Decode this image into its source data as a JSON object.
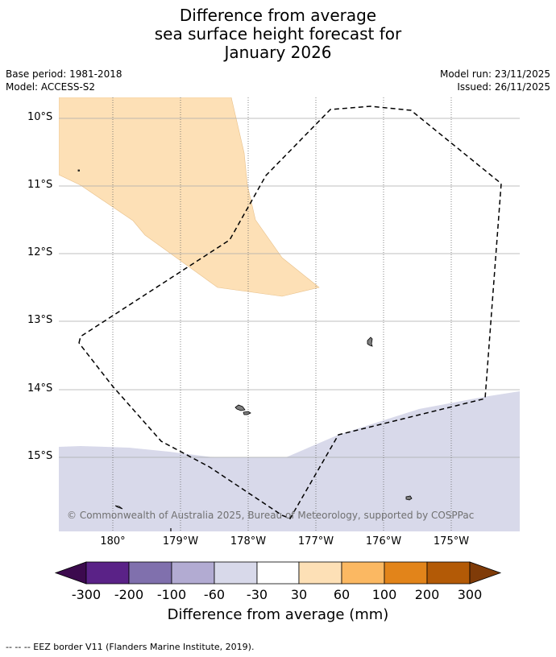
{
  "title": {
    "line1": "Difference from average",
    "line2": "sea surface height forecast for",
    "line3": "January 2026"
  },
  "meta": {
    "base_period": "Base period: 1981-2018",
    "model": "Model: ACCESS-S2",
    "model_run": "Model run: 23/11/2025",
    "issued": "Issued: 26/11/2025"
  },
  "map": {
    "y_ticks": [
      "10°S",
      "11°S",
      "12°S",
      "13°S",
      "14°S",
      "15°S"
    ],
    "x_ticks": [
      "180°",
      "179°W",
      "178°W",
      "177°W",
      "176°W",
      "175°W"
    ],
    "copyright": "© Commonwealth of Australia 2025, Bureau of Meteorology, supported by COSPPac",
    "colors": {
      "light_orange": "#fde0b6",
      "light_purple": "#d8d9ea",
      "land": "#7f7f7f",
      "border": "#000000"
    }
  },
  "colorbar": {
    "labels": [
      "-300",
      "-200",
      "-100",
      "-60",
      "-30",
      "30",
      "60",
      "100",
      "200",
      "300"
    ],
    "colors": [
      "#3c0a4e",
      "#5a2287",
      "#8070ad",
      "#b2abd2",
      "#d8d9ea",
      "#ffffff",
      "#fde0b6",
      "#fbb862",
      "#e2841a",
      "#b35a06",
      "#7f3b08"
    ],
    "title": "Difference from average (mm)"
  },
  "footnote": "--  --  -- EEZ border V11 (Flanders Marine Institute, 2019)."
}
